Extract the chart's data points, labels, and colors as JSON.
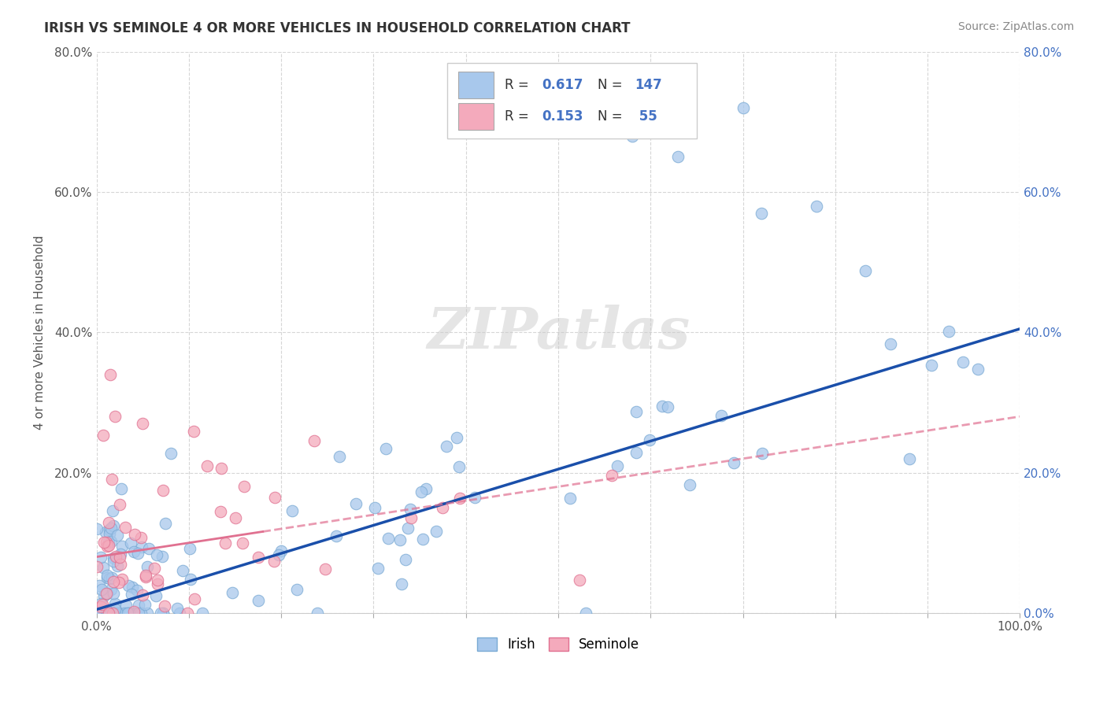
{
  "title": "IRISH VS SEMINOLE 4 OR MORE VEHICLES IN HOUSEHOLD CORRELATION CHART",
  "source": "Source: ZipAtlas.com",
  "ylabel": "4 or more Vehicles in Household",
  "xlim": [
    0,
    100
  ],
  "ylim": [
    0,
    80
  ],
  "irish_R": 0.617,
  "irish_N": 147,
  "seminole_R": 0.153,
  "seminole_N": 55,
  "irish_color": "#A8C8EC",
  "irish_edge_color": "#7AAAD4",
  "seminole_color": "#F4AABC",
  "seminole_edge_color": "#E07090",
  "irish_line_color": "#1a4faa",
  "seminole_line_color": "#E07090",
  "legend_label_color": "#4472C4",
  "background_color": "#ffffff",
  "watermark": "ZIPatlas",
  "irish_slope": 0.4,
  "irish_intercept": 0.5,
  "seminole_slope": 0.2,
  "seminole_intercept": 8.0,
  "seminole_solid_x_end": 18
}
